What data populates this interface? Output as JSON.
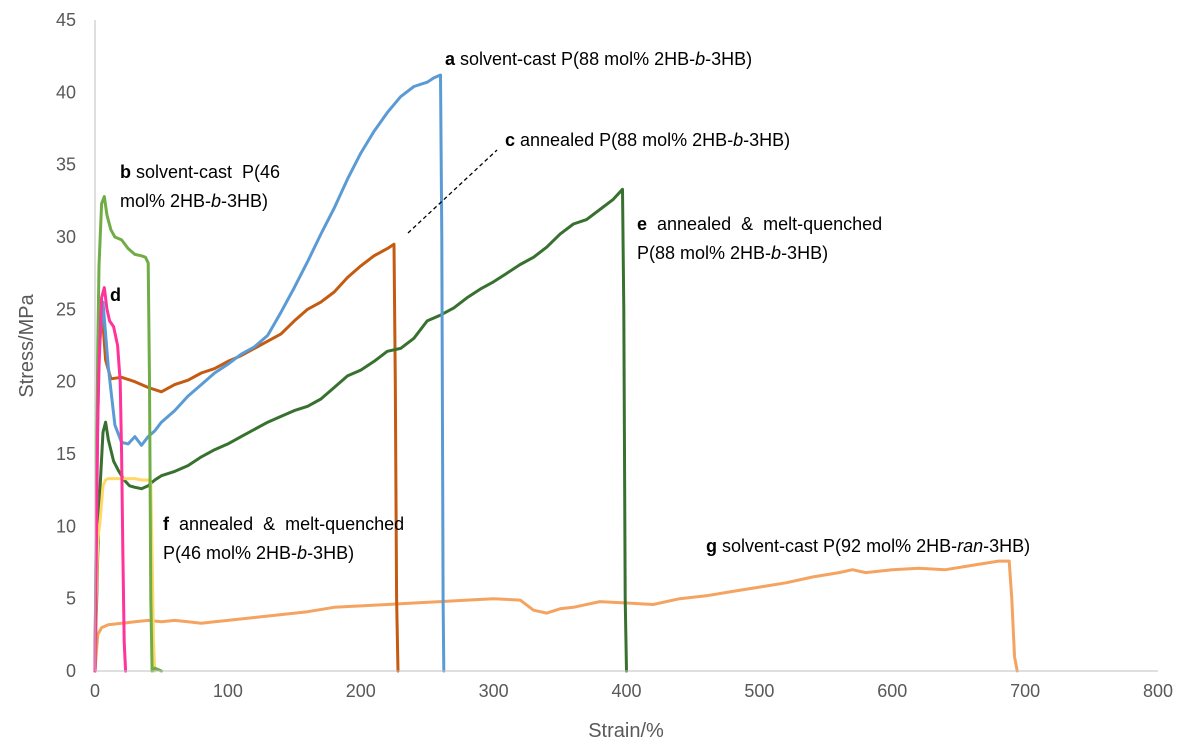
{
  "chart_data": {
    "type": "line",
    "xlabel": "Strain/%",
    "ylabel": "Stress/MPa",
    "xlim": [
      0,
      800
    ],
    "ylim": [
      0,
      45
    ],
    "xticks": [
      0,
      100,
      200,
      300,
      400,
      500,
      600,
      700,
      800
    ],
    "yticks": [
      0,
      5,
      10,
      15,
      20,
      25,
      30,
      35,
      40,
      45
    ],
    "grid": false,
    "legend": "none",
    "series": [
      {
        "id": "a",
        "color": "#5b9bd5",
        "x": [
          0,
          1,
          3,
          6,
          10,
          15,
          20,
          25,
          30,
          35,
          40,
          45,
          50,
          60,
          70,
          80,
          90,
          100,
          110,
          120,
          130,
          140,
          150,
          160,
          170,
          180,
          190,
          200,
          210,
          220,
          230,
          240,
          250,
          255,
          260,
          261,
          262,
          262.5
        ],
        "y": [
          0,
          12,
          22,
          25.5,
          21,
          17,
          15.8,
          15.7,
          16.2,
          15.6,
          16.2,
          16.6,
          17.2,
          18,
          19,
          19.8,
          20.6,
          21.2,
          21.9,
          22.4,
          23.2,
          24.8,
          26.5,
          28.3,
          30.2,
          32,
          34,
          35.8,
          37.3,
          38.6,
          39.7,
          40.4,
          40.7,
          41.0,
          41.2,
          30,
          5,
          0
        ]
      },
      {
        "id": "b",
        "color": "#70ad47",
        "x": [
          0,
          1,
          2,
          3,
          5,
          7,
          9,
          12,
          15,
          20,
          25,
          30,
          35,
          38,
          40,
          41,
          42,
          43,
          45,
          50
        ],
        "y": [
          0,
          10,
          22,
          28,
          32.3,
          32.8,
          31.5,
          30.5,
          30,
          29.8,
          29.2,
          28.8,
          28.7,
          28.6,
          28.2,
          20,
          5,
          0,
          0.2,
          0
        ]
      },
      {
        "id": "c",
        "color": "#c55a11",
        "x": [
          0,
          1,
          2,
          3,
          5,
          8,
          12,
          20,
          30,
          40,
          50,
          60,
          70,
          80,
          90,
          100,
          110,
          120,
          130,
          140,
          150,
          160,
          170,
          180,
          190,
          200,
          210,
          220,
          225,
          226,
          227,
          228
        ],
        "y": [
          0,
          10,
          18,
          22,
          25.3,
          21.5,
          20.2,
          20.3,
          20,
          19.6,
          19.3,
          19.8,
          20.1,
          20.6,
          20.9,
          21.4,
          21.8,
          22.3,
          22.8,
          23.3,
          24.2,
          25,
          25.5,
          26.2,
          27.2,
          28,
          28.7,
          29.2,
          29.5,
          20,
          5,
          0
        ]
      },
      {
        "id": "d",
        "color": "#ff3399",
        "x": [
          0,
          1,
          2,
          3,
          5,
          7,
          9,
          11,
          14,
          17,
          19,
          20,
          21,
          22,
          23
        ],
        "y": [
          0,
          8,
          17,
          21,
          25.8,
          26.5,
          25,
          24.2,
          23.8,
          22.5,
          20,
          15,
          8,
          2,
          0
        ]
      },
      {
        "id": "e",
        "color": "#38712f",
        "x": [
          0,
          2,
          4,
          6,
          8,
          10,
          14,
          18,
          22,
          26,
          30,
          35,
          40,
          45,
          50,
          60,
          70,
          80,
          90,
          100,
          110,
          120,
          130,
          140,
          150,
          160,
          170,
          180,
          190,
          200,
          210,
          220,
          230,
          240,
          250,
          260,
          270,
          280,
          290,
          300,
          310,
          320,
          330,
          340,
          350,
          360,
          370,
          380,
          390,
          397,
          398,
          399,
          400
        ],
        "y": [
          0,
          8,
          13,
          16.5,
          17.2,
          16,
          14.5,
          13.8,
          13.2,
          12.8,
          12.7,
          12.6,
          12.8,
          13.2,
          13.5,
          13.8,
          14.2,
          14.8,
          15.3,
          15.7,
          16.2,
          16.7,
          17.2,
          17.6,
          18.0,
          18.3,
          18.8,
          19.6,
          20.4,
          20.8,
          21.4,
          22.1,
          22.3,
          23.0,
          24.2,
          24.6,
          25.1,
          25.8,
          26.4,
          26.9,
          27.5,
          28.1,
          28.6,
          29.3,
          30.2,
          30.9,
          31.2,
          31.9,
          32.6,
          33.3,
          25,
          5,
          0
        ]
      },
      {
        "id": "f",
        "color": "#ffd966",
        "x": [
          0,
          1,
          2,
          4,
          6,
          8,
          10,
          15,
          20,
          25,
          30,
          35,
          40,
          42,
          43,
          44,
          45
        ],
        "y": [
          0,
          5,
          9,
          10.5,
          12.8,
          13.2,
          13.3,
          13.3,
          13.3,
          13.3,
          13.3,
          13.2,
          13.2,
          13.0,
          8,
          2,
          0
        ]
      },
      {
        "id": "g",
        "color": "#f4a460",
        "x": [
          0,
          2,
          5,
          10,
          20,
          30,
          40,
          50,
          60,
          70,
          80,
          90,
          100,
          120,
          140,
          160,
          180,
          200,
          220,
          240,
          260,
          280,
          300,
          320,
          330,
          340,
          350,
          360,
          380,
          400,
          420,
          440,
          460,
          480,
          500,
          520,
          540,
          560,
          570,
          580,
          600,
          620,
          640,
          660,
          680,
          688,
          690,
          692,
          694
        ],
        "y": [
          0,
          2.5,
          3.0,
          3.2,
          3.3,
          3.4,
          3.5,
          3.4,
          3.5,
          3.4,
          3.3,
          3.4,
          3.5,
          3.7,
          3.9,
          4.1,
          4.4,
          4.5,
          4.6,
          4.7,
          4.8,
          4.9,
          5.0,
          4.9,
          4.2,
          4.0,
          4.3,
          4.4,
          4.8,
          4.7,
          4.6,
          5.0,
          5.2,
          5.5,
          5.8,
          6.1,
          6.5,
          6.8,
          7.0,
          6.8,
          7.0,
          7.1,
          7.0,
          7.3,
          7.6,
          7.6,
          5,
          1,
          0
        ]
      }
    ],
    "annotations": [
      {
        "letter": "a",
        "text": [
          {
            "t": " solvent-cast P(88 mol% 2HB-"
          },
          {
            "t": "b",
            "i": true
          },
          {
            "t": "-3HB)"
          }
        ]
      },
      {
        "letter": "b",
        "text": [
          {
            "t": " solvent-cast  P(46"
          }
        ],
        "text2": [
          {
            "t": "mol% 2HB-"
          },
          {
            "t": "b",
            "i": true
          },
          {
            "t": "-3HB)"
          }
        ]
      },
      {
        "letter": "c",
        "text": [
          {
            "t": " annealed P(88 mol% 2HB-"
          },
          {
            "t": "b",
            "i": true
          },
          {
            "t": "-3HB)"
          }
        ]
      },
      {
        "letter": "d",
        "text": []
      },
      {
        "letter": "e",
        "text": [
          {
            "t": "  annealed  &  melt-quenched"
          }
        ],
        "text2": [
          {
            "t": "P(88 mol% 2HB-"
          },
          {
            "t": "b",
            "i": true
          },
          {
            "t": "-3HB)"
          }
        ]
      },
      {
        "letter": "f",
        "text": [
          {
            "t": "  annealed  &  melt-quenched"
          }
        ],
        "text2": [
          {
            "t": "P(46 mol% 2HB-"
          },
          {
            "t": "b",
            "i": true
          },
          {
            "t": "-3HB)"
          }
        ]
      },
      {
        "letter": "g",
        "text": [
          {
            "t": " solvent-cast P(92 mol% 2HB-"
          },
          {
            "t": "ran",
            "i": true
          },
          {
            "t": "-3HB)"
          }
        ]
      }
    ]
  }
}
